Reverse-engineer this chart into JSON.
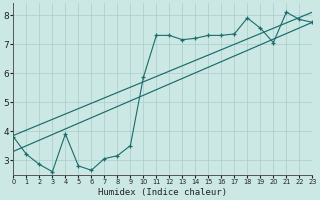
{
  "xlabel": "Humidex (Indice chaleur)",
  "bg_color": "#cce8e4",
  "line_color": "#1a6b6b",
  "grid_color": "#aacccc",
  "x_ticks": [
    0,
    1,
    2,
    3,
    4,
    5,
    6,
    7,
    8,
    9,
    10,
    11,
    12,
    13,
    14,
    15,
    16,
    17,
    18,
    19,
    20,
    21,
    22,
    23
  ],
  "y_ticks": [
    3,
    4,
    5,
    6,
    7,
    8
  ],
  "xlim": [
    0,
    23
  ],
  "ylim": [
    2.5,
    8.4
  ],
  "series1_x": [
    0,
    1,
    2,
    3,
    4,
    5,
    6,
    7,
    8,
    9,
    10,
    11,
    12,
    13,
    14,
    15,
    16,
    17,
    18,
    19,
    20,
    21,
    22,
    23
  ],
  "series1_y": [
    3.8,
    3.2,
    2.85,
    2.6,
    3.9,
    2.8,
    2.65,
    3.05,
    3.15,
    3.5,
    5.85,
    7.3,
    7.3,
    7.15,
    7.2,
    7.3,
    7.3,
    7.35,
    7.9,
    7.55,
    7.05,
    8.1,
    7.85,
    7.75
  ],
  "series2_x": [
    0,
    23
  ],
  "series2_y": [
    3.3,
    7.75
  ],
  "series3_x": [
    0,
    23
  ],
  "series3_y": [
    3.85,
    8.1
  ],
  "xlabel_fontsize": 6.5,
  "ytick_fontsize": 6.5,
  "xtick_fontsize": 4.8
}
